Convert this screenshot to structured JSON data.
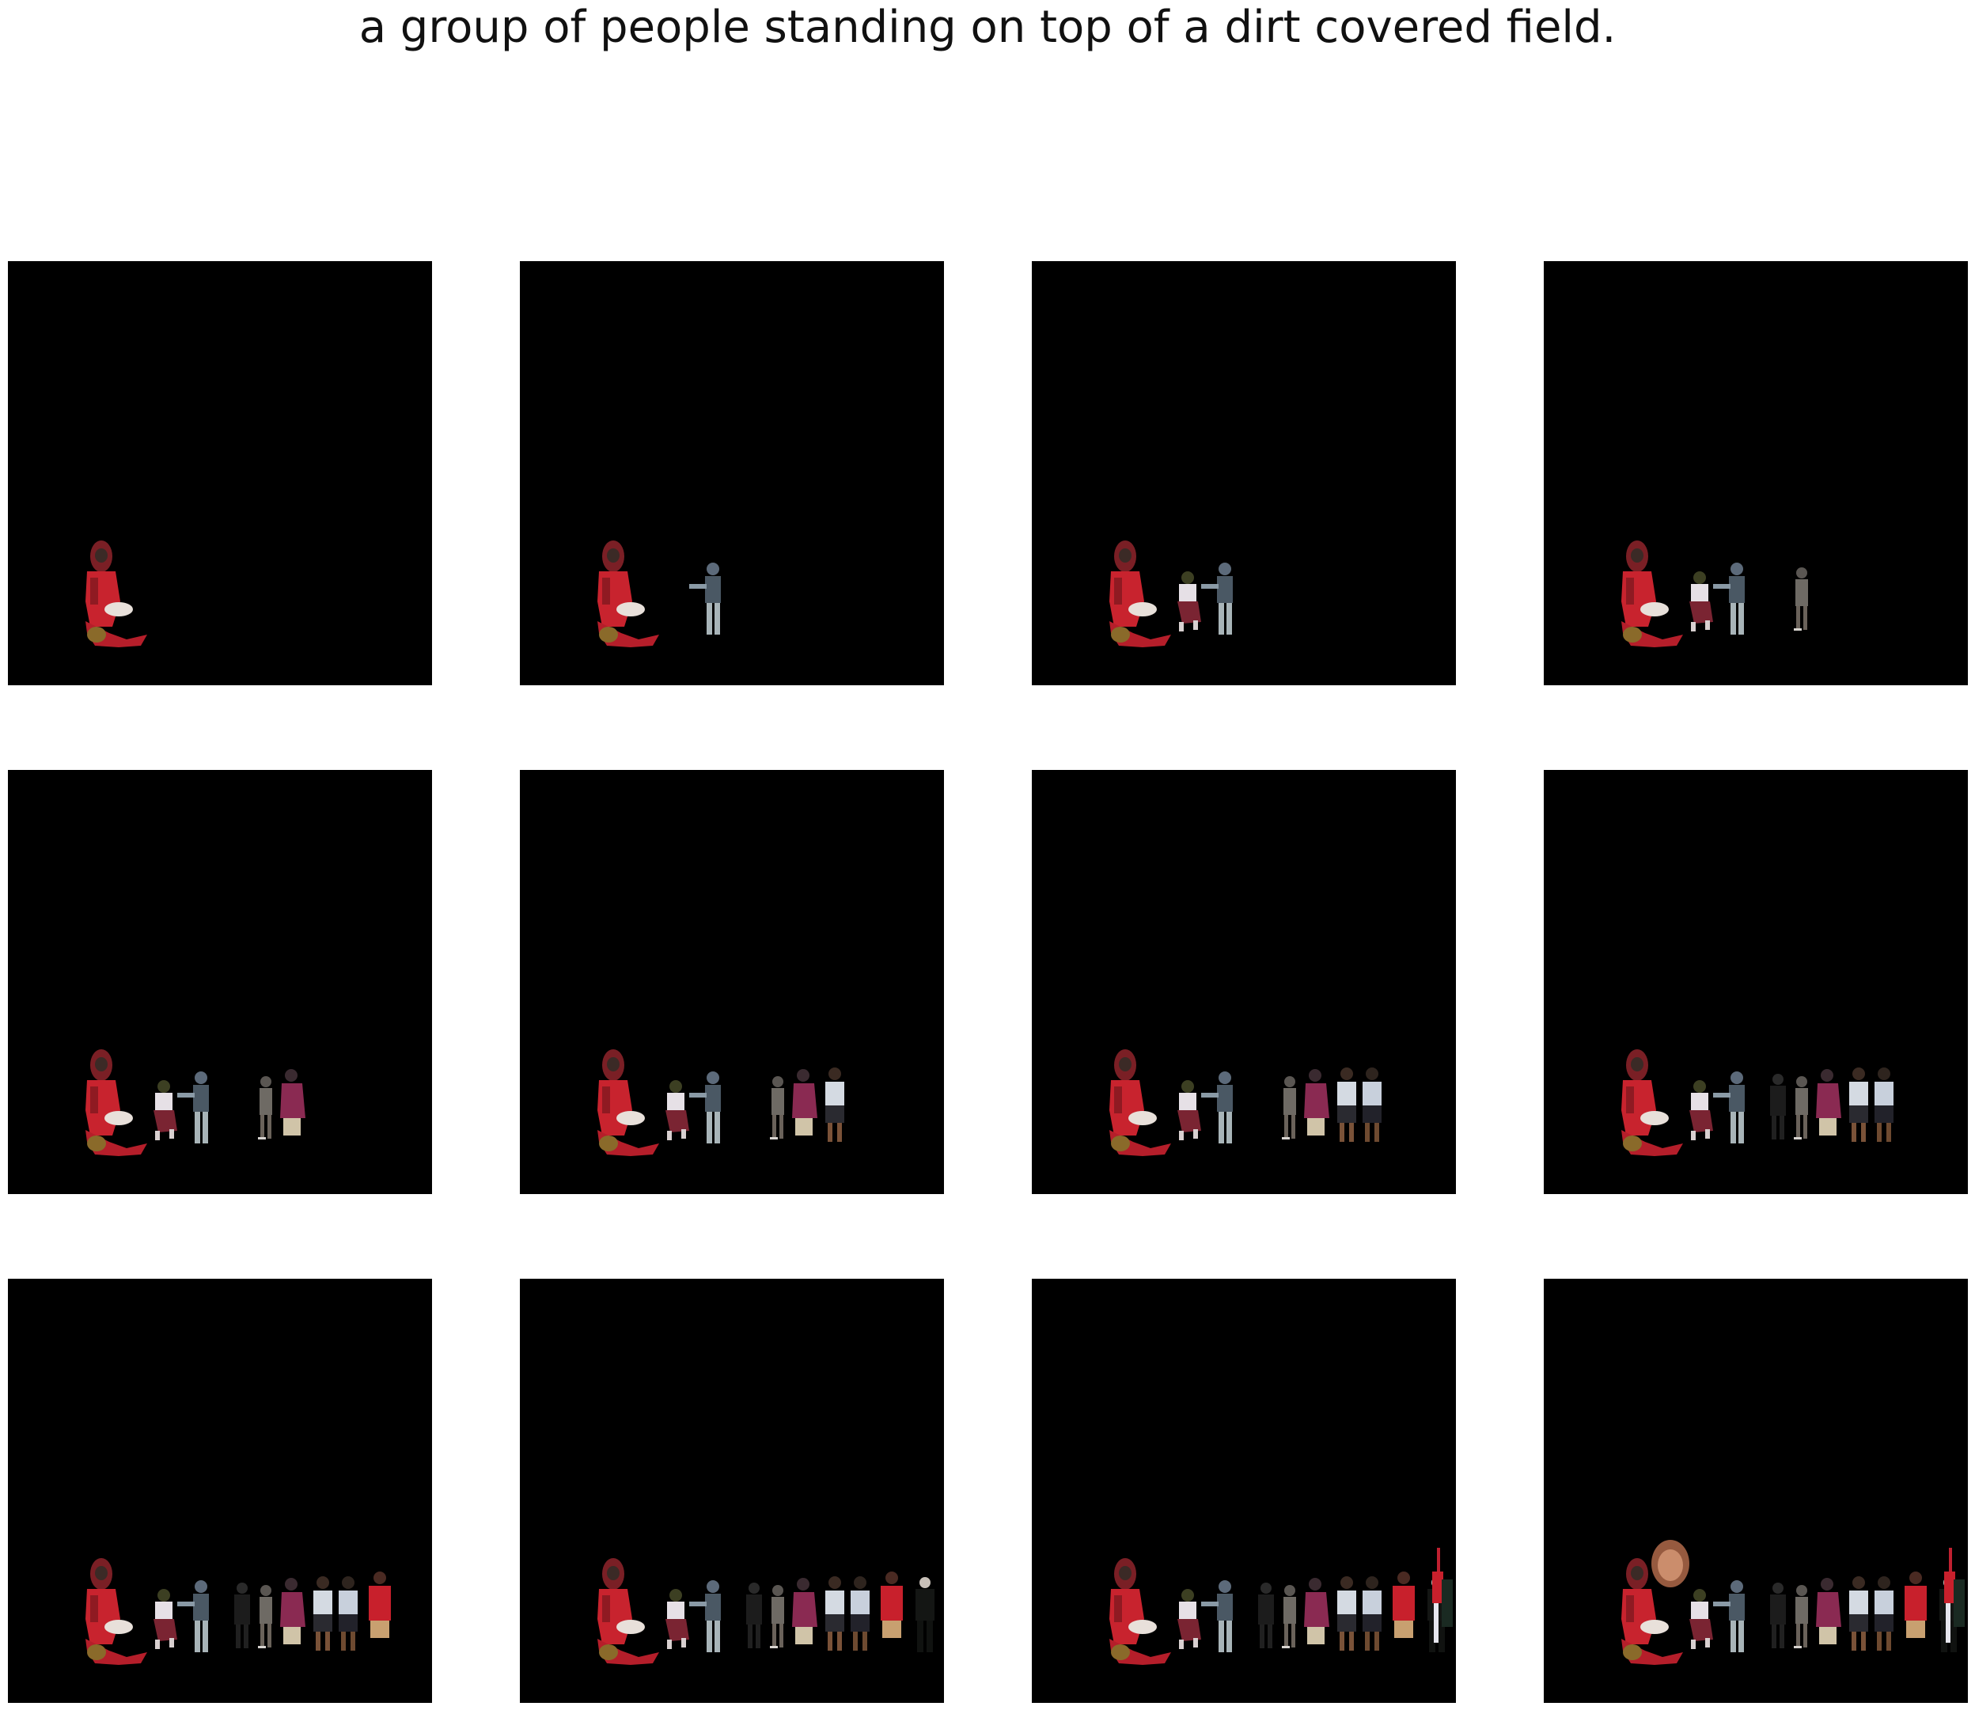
{
  "figure": {
    "caption": "a group of people standing on top of a dirt covered field."
  },
  "panels": [
    {
      "step": 1,
      "figures": [
        "red-catcher"
      ]
    },
    {
      "step": 2,
      "figures": [
        "red-catcher",
        "gray-batter"
      ]
    },
    {
      "step": 3,
      "figures": [
        "red-catcher",
        "crouching-umpire",
        "gray-batter"
      ]
    },
    {
      "step": 4,
      "figures": [
        "red-catcher",
        "crouching-umpire",
        "gray-batter",
        "standing-spectator"
      ]
    },
    {
      "step": 5,
      "figures": [
        "red-catcher",
        "crouching-umpire",
        "gray-batter",
        "standing-spectator",
        "pink-spectator"
      ]
    },
    {
      "step": 6,
      "figures": [
        "red-catcher",
        "crouching-umpire",
        "gray-batter",
        "standing-spectator",
        "pink-spectator",
        "white-shirt-person-1"
      ]
    },
    {
      "step": 7,
      "figures": [
        "red-catcher",
        "crouching-umpire",
        "gray-batter",
        "standing-spectator",
        "pink-spectator",
        "white-shirt-person-1",
        "white-shirt-person-2"
      ]
    },
    {
      "step": 8,
      "figures": [
        "red-catcher",
        "crouching-umpire",
        "gray-batter",
        "dark-spectator",
        "standing-spectator",
        "pink-spectator",
        "white-shirt-person-1",
        "white-shirt-person-2"
      ]
    },
    {
      "step": 9,
      "figures": [
        "red-catcher",
        "crouching-umpire",
        "gray-batter",
        "dark-spectator",
        "standing-spectator",
        "pink-spectator",
        "white-shirt-person-1",
        "white-shirt-person-2",
        "red-shirt-person"
      ]
    },
    {
      "step": 10,
      "figures": [
        "red-catcher",
        "crouching-umpire",
        "gray-batter",
        "dark-spectator",
        "standing-spectator",
        "pink-spectator",
        "white-shirt-person-1",
        "white-shirt-person-2",
        "red-shirt-person",
        "black-suit-person"
      ]
    },
    {
      "step": 11,
      "figures": [
        "red-catcher",
        "crouching-umpire",
        "gray-batter",
        "dark-spectator",
        "standing-spectator",
        "pink-spectator",
        "white-shirt-person-1",
        "white-shirt-person-2",
        "red-shirt-person",
        "black-suit-person",
        "flag-waver"
      ]
    },
    {
      "step": 12,
      "figures": [
        "red-catcher",
        "crouching-umpire",
        "gray-batter",
        "dark-spectator",
        "standing-spectator",
        "pink-spectator",
        "white-shirt-person-1",
        "white-shirt-person-2",
        "red-shirt-person",
        "black-suit-person",
        "flag-waver",
        "blurred-face"
      ]
    }
  ],
  "colors": {
    "background": "#ffffff",
    "panel": "#000000",
    "caption": "#111111"
  }
}
